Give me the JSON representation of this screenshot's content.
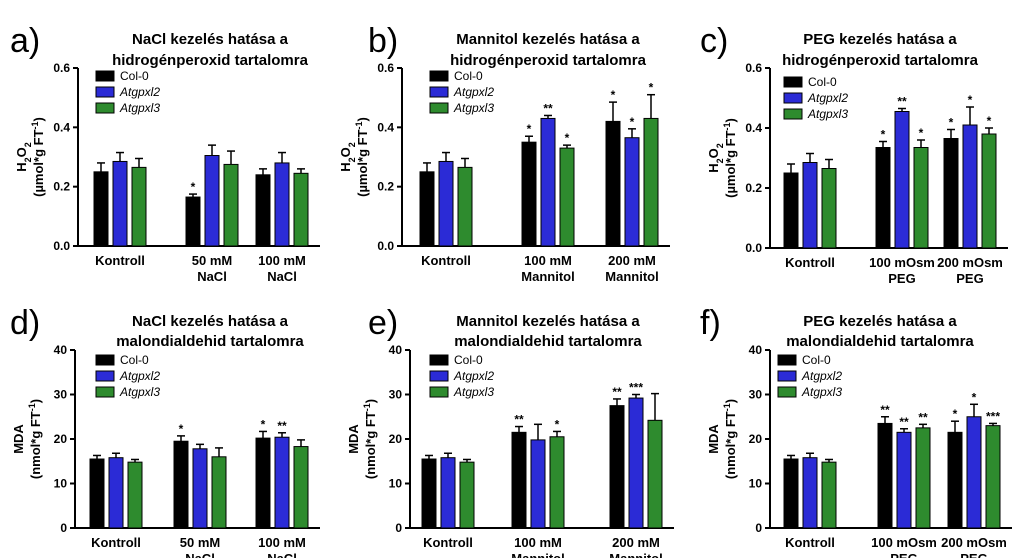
{
  "series_names": [
    "Col-0",
    "Atgpxl2",
    "Atgpxl3"
  ],
  "colors": {
    "col0": "#000000",
    "atgpxl2": "#2b2bd6",
    "atgpxl3": "#2e8b2e"
  },
  "chart_data": [
    {
      "type": "bar",
      "letter": "a)",
      "title": [
        "NaCl kezelés hatása a",
        "hidrogénperoxid tartalomra"
      ],
      "ylabel": [
        "H2O2",
        "(µmol*g FT-1)"
      ],
      "ylim": [
        0,
        0.6
      ],
      "yticks": [
        "0.0",
        "0.2",
        "0.4",
        "0.6"
      ],
      "categories": [
        [
          "Kontroll"
        ],
        [
          "50 mM",
          "NaCl"
        ],
        [
          "100 mM",
          "NaCl"
        ]
      ],
      "series": [
        {
          "name": "Col-0",
          "values": [
            0.25,
            0.165,
            0.24
          ],
          "errors": [
            0.03,
            0.01,
            0.02
          ],
          "stars": [
            "",
            "*",
            ""
          ]
        },
        {
          "name": "Atgpxl2",
          "values": [
            0.285,
            0.305,
            0.28
          ],
          "errors": [
            0.03,
            0.035,
            0.035
          ],
          "stars": [
            "",
            "",
            ""
          ]
        },
        {
          "name": "Atgpxl3",
          "values": [
            0.265,
            0.275,
            0.245
          ],
          "errors": [
            0.03,
            0.045,
            0.015
          ],
          "stars": [
            "",
            "",
            ""
          ]
        }
      ]
    },
    {
      "type": "bar",
      "letter": "b)",
      "title": [
        "Mannitol kezelés hatása a",
        "hidrogénperoxid tartalomra"
      ],
      "ylabel": [
        "H2O2",
        "(µmol*g FT-1)"
      ],
      "ylim": [
        0,
        0.6
      ],
      "yticks": [
        "0.0",
        "0.2",
        "0.4",
        "0.6"
      ],
      "categories": [
        [
          "Kontroll"
        ],
        [
          "100 mM",
          "Mannitol"
        ],
        [
          "200 mM",
          "Mannitol"
        ]
      ],
      "series": [
        {
          "name": "Col-0",
          "values": [
            0.25,
            0.35,
            0.42
          ],
          "errors": [
            0.03,
            0.02,
            0.065
          ],
          "stars": [
            "",
            "*",
            "*"
          ]
        },
        {
          "name": "Atgpxl2",
          "values": [
            0.285,
            0.43,
            0.365
          ],
          "errors": [
            0.03,
            0.01,
            0.03
          ],
          "stars": [
            "",
            "**",
            "*"
          ]
        },
        {
          "name": "Atgpxl3",
          "values": [
            0.265,
            0.33,
            0.43
          ],
          "errors": [
            0.03,
            0.01,
            0.08
          ],
          "stars": [
            "",
            "*",
            "*"
          ]
        }
      ]
    },
    {
      "type": "bar",
      "letter": "c)",
      "title": [
        "PEG kezelés hatása a",
        "hidrogénperoxid tartalomra"
      ],
      "ylabel": [
        "H2O2",
        "(µmol*g FT-1)"
      ],
      "ylim": [
        0,
        0.6
      ],
      "yticks": [
        "0.0",
        "0.2",
        "0.4",
        "0.6"
      ],
      "categories": [
        [
          "Kontroll"
        ],
        [
          "100 mOsm",
          "PEG"
        ],
        [
          "200 mOsm",
          "PEG"
        ]
      ],
      "series": [
        {
          "name": "Col-0",
          "values": [
            0.25,
            0.335,
            0.365
          ],
          "errors": [
            0.03,
            0.02,
            0.03
          ],
          "stars": [
            "",
            "*",
            "*"
          ]
        },
        {
          "name": "Atgpxl2",
          "values": [
            0.285,
            0.455,
            0.41
          ],
          "errors": [
            0.03,
            0.01,
            0.06
          ],
          "stars": [
            "",
            "**",
            "*"
          ]
        },
        {
          "name": "Atgpxl3",
          "values": [
            0.265,
            0.335,
            0.38
          ],
          "errors": [
            0.03,
            0.025,
            0.02
          ],
          "stars": [
            "",
            "*",
            "*"
          ]
        }
      ]
    },
    {
      "type": "bar",
      "letter": "d)",
      "title": [
        "NaCl kezelés hatása a",
        "malondialdehid tartalomra"
      ],
      "ylabel": [
        "MDA",
        "(nmol*g FT-1)"
      ],
      "ylim": [
        0,
        40
      ],
      "yticks": [
        "0",
        "10",
        "20",
        "30",
        "40"
      ],
      "categories": [
        [
          "Kontroll"
        ],
        [
          "50 mM",
          "NaCl"
        ],
        [
          "100 mM",
          "NaCl"
        ]
      ],
      "series": [
        {
          "name": "Col-0",
          "values": [
            15.5,
            19.5,
            20.2
          ],
          "errors": [
            0.8,
            1.2,
            1.5
          ],
          "stars": [
            "",
            "*",
            "*"
          ]
        },
        {
          "name": "Atgpxl2",
          "values": [
            15.8,
            17.8,
            20.4
          ],
          "errors": [
            1.0,
            1.0,
            1.0
          ],
          "stars": [
            "",
            "",
            "**"
          ]
        },
        {
          "name": "Atgpxl3",
          "values": [
            14.8,
            16.0,
            18.3
          ],
          "errors": [
            0.6,
            2.0,
            1.5
          ],
          "stars": [
            "",
            "",
            ""
          ]
        }
      ]
    },
    {
      "type": "bar",
      "letter": "e)",
      "title": [
        "Mannitol kezelés hatása a",
        "malondialdehid tartalomra"
      ],
      "ylabel": [
        "MDA",
        "(nmol*g FT-1)"
      ],
      "ylim": [
        0,
        40
      ],
      "yticks": [
        "0",
        "10",
        "20",
        "30",
        "40"
      ],
      "categories": [
        [
          "Kontroll"
        ],
        [
          "100 mM",
          "Mannitol"
        ],
        [
          "200 mM",
          "Mannitol"
        ]
      ],
      "series": [
        {
          "name": "Col-0",
          "values": [
            15.5,
            21.5,
            27.5
          ],
          "errors": [
            0.8,
            1.3,
            1.5
          ],
          "stars": [
            "",
            "**",
            "**"
          ]
        },
        {
          "name": "Atgpxl2",
          "values": [
            15.8,
            19.8,
            29.2
          ],
          "errors": [
            1.0,
            3.5,
            0.8
          ],
          "stars": [
            "",
            "",
            "***"
          ]
        },
        {
          "name": "Atgpxl3",
          "values": [
            14.8,
            20.5,
            24.2
          ],
          "errors": [
            0.6,
            1.2,
            6.0
          ],
          "stars": [
            "",
            "*",
            ""
          ]
        }
      ]
    },
    {
      "type": "bar",
      "letter": "f)",
      "title": [
        "PEG kezelés hatása a",
        "malondialdehid tartalomra"
      ],
      "ylabel": [
        "MDA",
        "(nmol*g FT-1)"
      ],
      "ylim": [
        0,
        40
      ],
      "yticks": [
        "0",
        "10",
        "20",
        "30",
        "40"
      ],
      "categories": [
        [
          "Kontroll"
        ],
        [
          "100 mOsm",
          "PEG"
        ],
        [
          "200 mOsm",
          "PEG"
        ]
      ],
      "series": [
        {
          "name": "Col-0",
          "values": [
            15.5,
            23.5,
            21.5
          ],
          "errors": [
            0.8,
            1.5,
            2.5
          ],
          "stars": [
            "",
            "**",
            "*"
          ]
        },
        {
          "name": "Atgpxl2",
          "values": [
            15.8,
            21.5,
            25.0
          ],
          "errors": [
            1.0,
            0.8,
            2.8
          ],
          "stars": [
            "",
            "**",
            "*"
          ]
        },
        {
          "name": "Atgpxl3",
          "values": [
            14.8,
            22.5,
            23.0
          ],
          "errors": [
            0.6,
            0.8,
            0.5
          ],
          "stars": [
            "",
            "**",
            "***"
          ]
        }
      ]
    }
  ]
}
